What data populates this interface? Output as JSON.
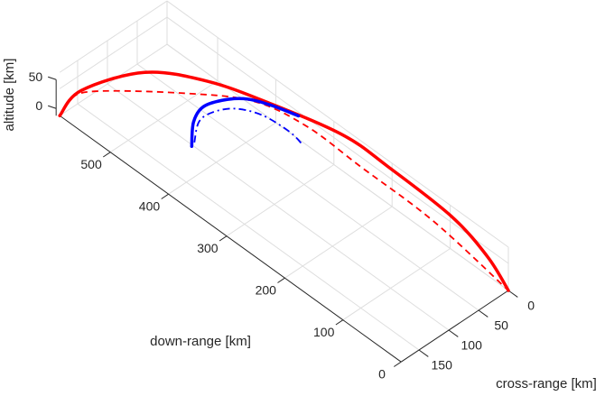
{
  "chart_data": {
    "type": "line3d",
    "title": "",
    "xlabel": "down-range [km]",
    "ylabel": "cross-range [km]",
    "zlabel": "altitude [km]",
    "xlim": [
      0,
      587
    ],
    "ylim": [
      0,
      180
    ],
    "zlim": [
      0,
      80
    ],
    "xticks": [
      "0",
      "100",
      "200",
      "300",
      "400",
      "500"
    ],
    "xtick_values": [
      0,
      100,
      200,
      300,
      400,
      500
    ],
    "yticks": [
      "0",
      "50",
      "100",
      "150"
    ],
    "ytick_values": [
      0,
      50,
      100,
      150
    ],
    "zticks": [
      "0",
      "50"
    ],
    "ztick_values": [
      0,
      50
    ],
    "grid": true,
    "series": [
      {
        "name": "red-solid",
        "color": "#ff0000",
        "style": "solid",
        "width": 3.5,
        "ground_start": [
          587,
          180
        ],
        "ground_end": [
          0,
          0
        ],
        "profile": [
          [
            0,
            0
          ],
          [
            0.048,
            62
          ],
          [
            0.189,
            141
          ],
          [
            0.33,
            170
          ],
          [
            0.471,
            174
          ],
          [
            0.632,
            168
          ],
          [
            0.732,
            142
          ],
          [
            0.873,
            96
          ],
          [
            0.954,
            47
          ],
          [
            1,
            0
          ]
        ]
      },
      {
        "name": "red-dashed",
        "color": "#ff0000",
        "style": "dashed",
        "width": 1.8,
        "ground_start": [
          587,
          180
        ],
        "ground_end": [
          0,
          0
        ],
        "profile": [
          [
            0,
            0
          ],
          [
            0.028,
            43
          ],
          [
            0.0885,
            74
          ],
          [
            0.27,
            129
          ],
          [
            0.43,
            166
          ],
          [
            0.551,
            158
          ],
          [
            0.672,
            122
          ],
          [
            0.833,
            74
          ],
          [
            1,
            0
          ]
        ]
      },
      {
        "name": "blue-solid",
        "color": "#0000ff",
        "style": "solid",
        "width": 3.5,
        "ground_start": [
          440,
          102
        ],
        "ground_end": [
          275,
          84
        ],
        "profile": [
          [
            0,
            0
          ],
          [
            0.017,
            47
          ],
          [
            0.11,
            86
          ],
          [
            0.32,
            123
          ],
          [
            0.53,
            148
          ],
          [
            0.76,
            162
          ],
          [
            1,
            171
          ]
        ]
      },
      {
        "name": "blue-dashdot",
        "color": "#0000ff",
        "style": "dashdot",
        "width": 1.8,
        "ground_start": [
          440,
          102
        ],
        "ground_end": [
          269,
          83
        ],
        "profile": [
          [
            0.024,
            10
          ],
          [
            0.065,
            53
          ],
          [
            0.187,
            85
          ],
          [
            0.39,
            116
          ],
          [
            0.634,
            133
          ],
          [
            0.878,
            132
          ],
          [
            1,
            122
          ]
        ]
      }
    ]
  }
}
